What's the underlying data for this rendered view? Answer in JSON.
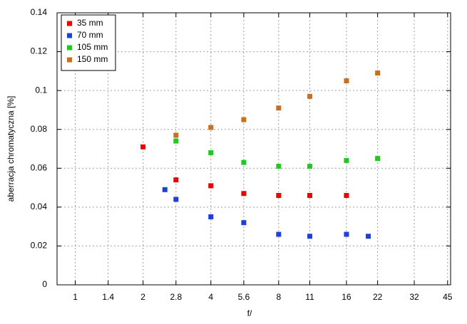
{
  "chart_data": {
    "type": "scatter",
    "x_label": "f/",
    "y_label": "aberracja chromatyczna [%]",
    "xscale": "log",
    "xlim": [
      0.83,
      46.4
    ],
    "xticks": [
      1,
      1.4,
      2,
      2.8,
      4,
      5.6,
      8,
      11,
      16,
      22,
      32,
      45
    ],
    "ylim": [
      0,
      0.14
    ],
    "yticks": [
      0,
      0.02,
      0.04,
      0.06,
      0.08,
      0.1,
      0.12,
      0.14
    ],
    "grid": true,
    "legend": "upper left",
    "series": [
      {
        "name": "35 mm",
        "color": "#ee0000",
        "x": [
          2,
          2.8,
          4,
          5.6,
          8,
          11,
          16
        ],
        "values": [
          0.071,
          0.054,
          0.051,
          0.047,
          0.046,
          0.046,
          0.046
        ]
      },
      {
        "name": "70 mm",
        "color": "#1f3fd6",
        "x": [
          2.5,
          2.8,
          4,
          5.6,
          8,
          11,
          16,
          20
        ],
        "values": [
          0.049,
          0.044,
          0.035,
          0.032,
          0.026,
          0.025,
          0.026,
          0.025
        ]
      },
      {
        "name": "105 mm",
        "color": "#22c722",
        "x": [
          2.8,
          4,
          5.6,
          8,
          11,
          16,
          22
        ],
        "values": [
          0.074,
          0.068,
          0.063,
          0.061,
          0.061,
          0.064,
          0.065
        ]
      },
      {
        "name": "150 mm",
        "color": "#c87020",
        "x": [
          2.8,
          4,
          5.6,
          8,
          11,
          16,
          22
        ],
        "values": [
          0.077,
          0.081,
          0.085,
          0.091,
          0.097,
          0.105,
          0.109
        ]
      }
    ]
  }
}
